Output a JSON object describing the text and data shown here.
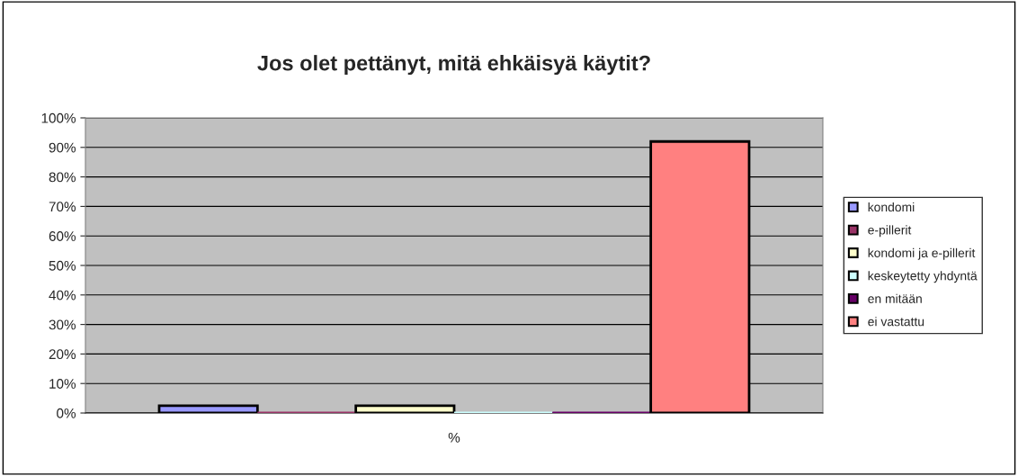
{
  "chart_data": {
    "type": "bar",
    "title": "Jos olet pettänyt, mitä ehkäisyä käytit?",
    "categories": [
      "%"
    ],
    "series": [
      {
        "name": "kondomi",
        "color": "#9999ff",
        "values": [
          2.5
        ]
      },
      {
        "name": "e-pillerit",
        "color": "#993366",
        "values": [
          0
        ]
      },
      {
        "name": "kondomi ja e-pillerit",
        "color": "#ffffcc",
        "values": [
          2.5
        ]
      },
      {
        "name": "keskeytetty yhdyntä",
        "color": "#ccffff",
        "values": [
          0
        ]
      },
      {
        "name": "en mitään",
        "color": "#660066",
        "values": [
          0
        ]
      },
      {
        "name": "ei vastattu",
        "color": "#ff8080",
        "values": [
          92
        ]
      }
    ],
    "ylim": [
      0,
      100
    ],
    "yticks": [
      {
        "value": 0,
        "label": "0%"
      },
      {
        "value": 10,
        "label": "10%"
      },
      {
        "value": 20,
        "label": "20%"
      },
      {
        "value": 30,
        "label": "30%"
      },
      {
        "value": 40,
        "label": "40%"
      },
      {
        "value": 50,
        "label": "50%"
      },
      {
        "value": 60,
        "label": "60%"
      },
      {
        "value": 70,
        "label": "70%"
      },
      {
        "value": 80,
        "label": "80%"
      },
      {
        "value": 90,
        "label": "90%"
      },
      {
        "value": 100,
        "label": "100%"
      }
    ],
    "grid": "y",
    "legend": "right"
  }
}
